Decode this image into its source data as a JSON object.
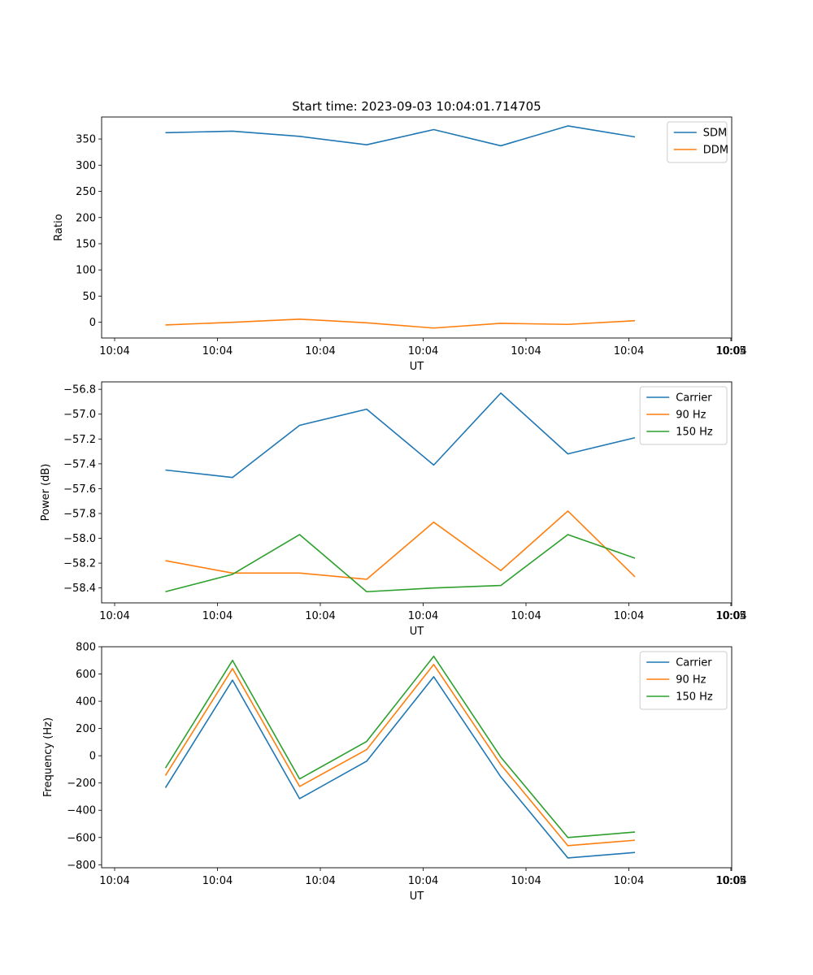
{
  "figure": {
    "title": "Start time: 2023-09-03 10:04:01.714705"
  },
  "chart_data": [
    {
      "type": "line",
      "title": "Start time: 2023-09-03 10:04:01.714705",
      "xlabel": "UT",
      "ylabel": "Ratio",
      "x_ticklabels": [
        "10:04",
        "10:04",
        "10:04",
        "10:04",
        "10:04",
        "10:04",
        "10:04",
        "10:05"
      ],
      "ylim": [
        -30,
        392
      ],
      "yticks": [
        0,
        50,
        100,
        150,
        200,
        250,
        300,
        350
      ],
      "yticklabels": [
        "0",
        "50",
        "100",
        "150",
        "200",
        "250",
        "300",
        "350"
      ],
      "legend_position": "top-right",
      "series": [
        {
          "name": "SDM",
          "color": "#1f77b4",
          "values": [
            362,
            365,
            355,
            339,
            368,
            337,
            375,
            354
          ]
        },
        {
          "name": "DDM",
          "color": "#ff7f0e",
          "values": [
            -5,
            0,
            6,
            -1,
            -11,
            -2,
            -4,
            3
          ]
        }
      ]
    },
    {
      "type": "line",
      "title": "",
      "xlabel": "UT",
      "ylabel": "Power (dB)",
      "x_ticklabels": [
        "10:04",
        "10:04",
        "10:04",
        "10:04",
        "10:04",
        "10:04",
        "10:04",
        "10:05"
      ],
      "ylim": [
        -58.52,
        -56.74
      ],
      "yticks": [
        -58.4,
        -58.2,
        -58.0,
        -57.8,
        -57.6,
        -57.4,
        -57.2,
        -57.0,
        -56.8
      ],
      "yticklabels": [
        "−58.4",
        "−58.2",
        "−58.0",
        "−57.8",
        "−57.6",
        "−57.4",
        "−57.2",
        "−57.0",
        "−56.8"
      ],
      "legend_position": "top-right",
      "series": [
        {
          "name": "Carrier",
          "color": "#1f77b4",
          "values": [
            -57.45,
            -57.51,
            -57.09,
            -56.96,
            -57.41,
            -56.83,
            -57.32,
            -57.19
          ]
        },
        {
          "name": "90 Hz",
          "color": "#ff7f0e",
          "values": [
            -58.18,
            -58.28,
            -58.28,
            -58.33,
            -57.87,
            -58.26,
            -57.78,
            -58.31
          ]
        },
        {
          "name": "150 Hz",
          "color": "#2ca02c",
          "values": [
            -58.43,
            -58.29,
            -57.97,
            -58.43,
            -58.4,
            -58.38,
            -57.97,
            -58.16
          ]
        }
      ]
    },
    {
      "type": "line",
      "title": "",
      "xlabel": "UT",
      "ylabel": "Frequency (Hz)",
      "x_ticklabels": [
        "10:04",
        "10:04",
        "10:04",
        "10:04",
        "10:04",
        "10:04",
        "10:04",
        "10:05"
      ],
      "ylim": [
        -822,
        800
      ],
      "yticks": [
        -800,
        -600,
        -400,
        -200,
        0,
        200,
        400,
        600,
        800
      ],
      "yticklabels": [
        "−800",
        "−600",
        "−400",
        "−200",
        "0",
        "200",
        "400",
        "600",
        "800"
      ],
      "legend_position": "top-right",
      "series": [
        {
          "name": "Carrier",
          "color": "#1f77b4",
          "values": [
            -235,
            555,
            -315,
            -40,
            580,
            -155,
            -750,
            -710
          ]
        },
        {
          "name": "90 Hz",
          "color": "#ff7f0e",
          "values": [
            -145,
            640,
            -225,
            45,
            670,
            -65,
            -660,
            -620
          ]
        },
        {
          "name": "150 Hz",
          "color": "#2ca02c",
          "values": [
            -90,
            700,
            -170,
            105,
            730,
            -10,
            -600,
            -560
          ]
        }
      ]
    }
  ]
}
